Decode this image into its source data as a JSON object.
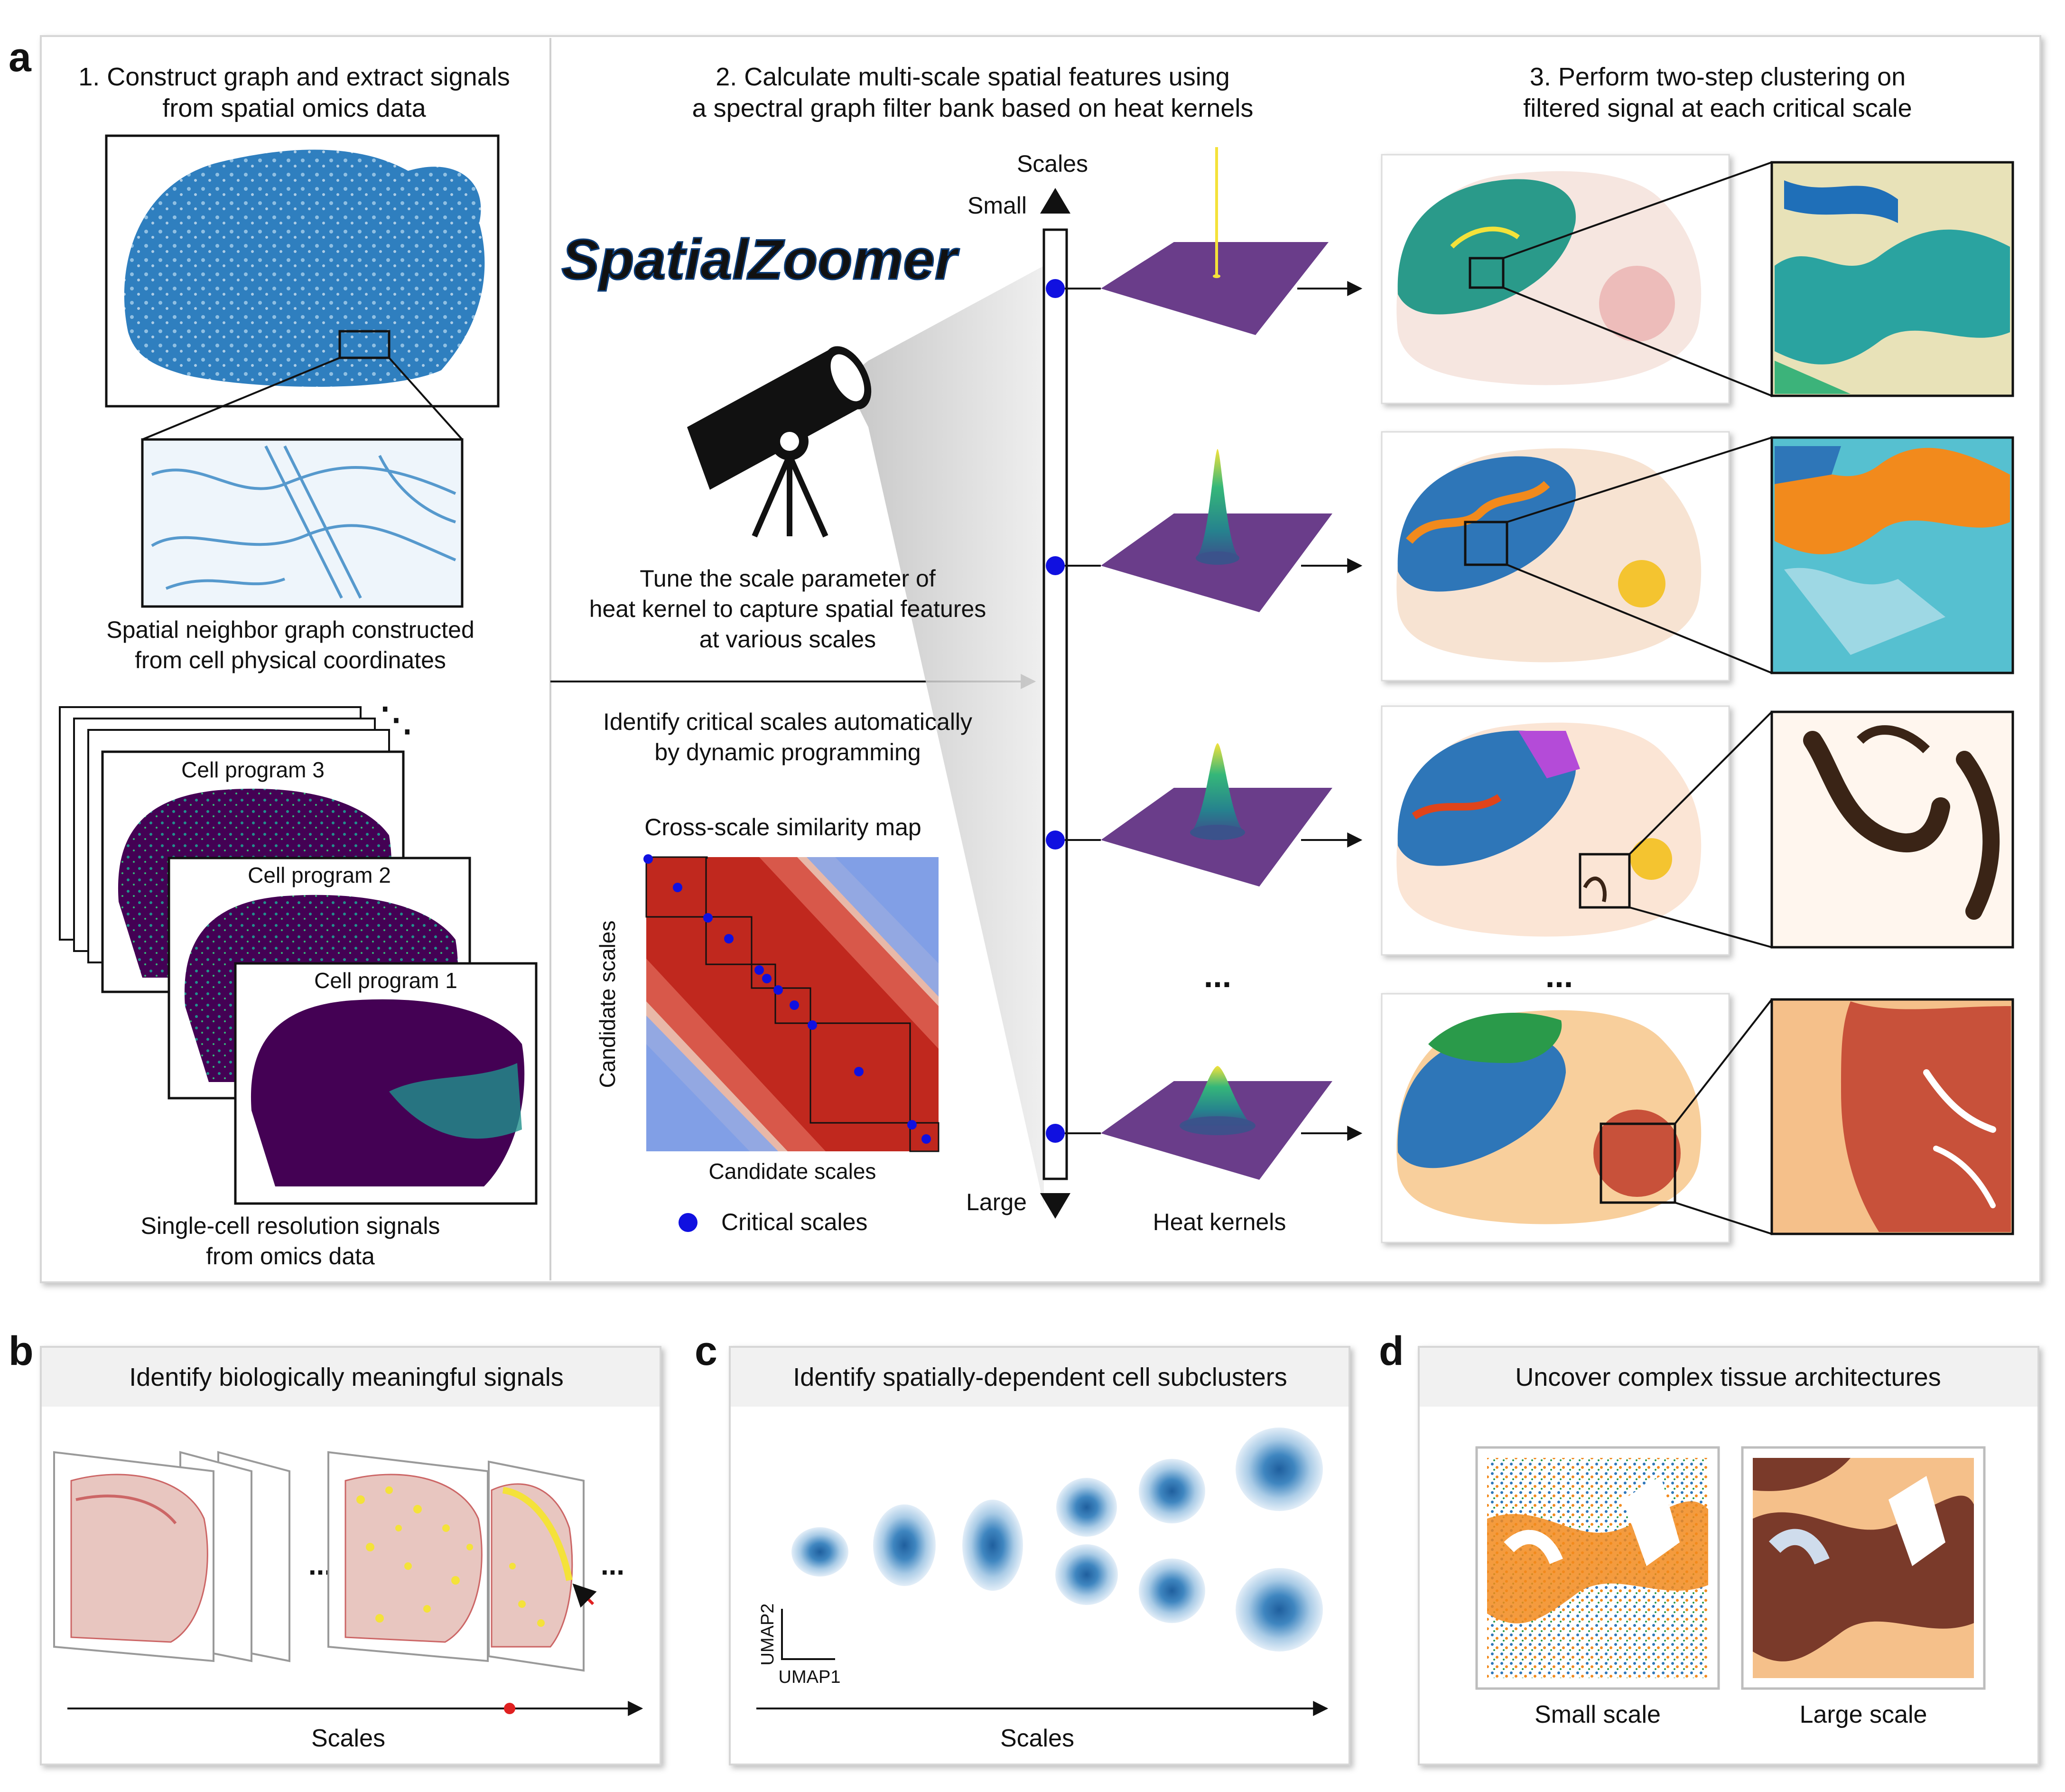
{
  "panel_a": {
    "letter": "a",
    "step1": {
      "title_line1": "1. Construct graph and extract signals",
      "title_line2": "from spatial omics data",
      "graph_caption_line1": "Spatial neighbor graph constructed",
      "graph_caption_line2": "from cell physical coordinates",
      "programs": [
        "Cell program 3",
        "Cell program 2",
        "Cell program 1"
      ],
      "signals_caption_line1": "Single-cell resolution signals",
      "signals_caption_line2": "from omics data"
    },
    "step2": {
      "title_line1": "2. Calculate multi-scale spatial features using",
      "title_line2": "a spectral graph filter bank based on heat kernels",
      "logo_text": "SpatialZoomer",
      "tune_line1": "Tune the scale parameter of",
      "tune_line2": "heat kernel to capture spatial features",
      "tune_line3": "at various scales",
      "identify_line1": "Identify critical scales automatically",
      "identify_line2": "by dynamic programming",
      "map_title": "Cross-scale similarity map",
      "map_xlabel": "Candidate scales",
      "map_ylabel": "Candidate scales",
      "legend_label": "Critical scales",
      "scales_label": "Scales",
      "small_label": "Small",
      "large_label": "Large",
      "kernels_label": "Heat kernels",
      "ellipsis": "..."
    },
    "step3": {
      "title_line1": "3. Perform two-step clustering on",
      "title_line2": "filtered signal at each critical scale",
      "ellipsis": "..."
    }
  },
  "panel_b": {
    "letter": "b",
    "title": "Identify biologically meaningful signals",
    "axis_label": "Scales",
    "ellipsis": "..."
  },
  "panel_c": {
    "letter": "c",
    "title": "Identify spatially-dependent cell subclusters",
    "axis_label": "Scales",
    "umap_x": "UMAP1",
    "umap_y": "UMAP2"
  },
  "panel_d": {
    "letter": "d",
    "title": "Uncover complex tissue architectures",
    "small_caption": "Small scale",
    "large_caption": "Large scale"
  },
  "colors": {
    "graph_blue": "#2f7fbf",
    "viridis_dark": "#440154",
    "viridis_teal": "#21918c",
    "kernel_purple": "#6a3d8a",
    "critical_dot": "#1010e0",
    "sim_red": "#c0281e",
    "sim_blue": "#3a5fd0",
    "cluster_orange": "#f28a1c",
    "cluster_blue": "#2e76b8",
    "cluster_green": "#2a9a4a",
    "cluster_brown": "#7a3a2a",
    "cluster_peach": "#f5c08a",
    "brain_pink": "#e8c6c0",
    "highlight_yellow": "#f4e23a"
  }
}
